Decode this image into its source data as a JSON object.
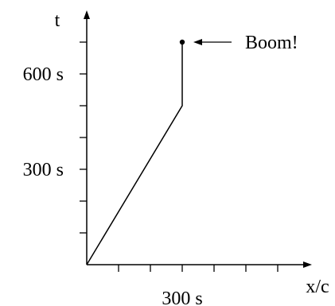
{
  "chart_data": {
    "type": "line",
    "xlabel": "x/c",
    "ylabel": "t",
    "x_unit": "s",
    "y_unit": "s",
    "xlim": [
      0,
      700
    ],
    "ylim": [
      0,
      700
    ],
    "x_tick_values": [
      100,
      200,
      300,
      400,
      500,
      600
    ],
    "y_tick_values": [
      100,
      200,
      300,
      400,
      500,
      600,
      700
    ],
    "x_tick_labels": [
      {
        "value": 300,
        "text": "300 s"
      }
    ],
    "y_tick_labels": [
      {
        "value": 300,
        "text": "300 s"
      },
      {
        "value": 600,
        "text": "600 s"
      }
    ],
    "series": [
      {
        "points": [
          [
            0,
            0
          ],
          [
            300,
            500
          ],
          [
            300,
            700
          ]
        ]
      }
    ],
    "event": {
      "x": 300,
      "y": 700
    },
    "annotation": {
      "text": "Boom!",
      "target": [
        300,
        700
      ]
    },
    "grid": false,
    "color": "#000000"
  }
}
